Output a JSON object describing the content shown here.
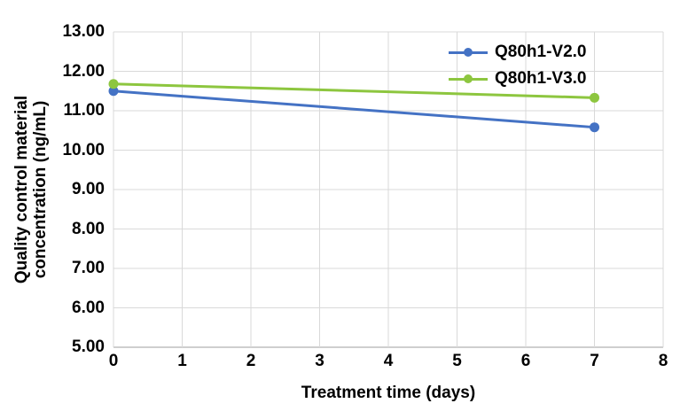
{
  "chart_data": {
    "type": "line",
    "title": "",
    "xlabel": "Treatment time (days)",
    "ylabel": "Quality control material concentration (ng/mL)",
    "ylabel_lines": [
      "Quality control material",
      "concentration (ng/mL)"
    ],
    "x": [
      0,
      7
    ],
    "series": [
      {
        "name": "Q80h1-V2.0",
        "color": "#4472C4",
        "values": [
          11.5,
          10.58
        ]
      },
      {
        "name": "Q80h1-V3.0",
        "color": "#8DC63F",
        "values": [
          11.68,
          11.33
        ]
      }
    ],
    "xlim": [
      0,
      8
    ],
    "ylim": [
      5,
      13
    ],
    "xticks": [
      0,
      1,
      2,
      3,
      4,
      5,
      6,
      7,
      8
    ],
    "yticks": [
      5,
      6,
      7,
      8,
      9,
      10,
      11,
      12,
      13
    ],
    "yticklabels": [
      "5.00",
      "6.00",
      "7.00",
      "8.00",
      "9.00",
      "10.00",
      "11.00",
      "12.00",
      "13.00"
    ],
    "grid": true,
    "legend_position": "top-right",
    "marker": "circle",
    "colors": {
      "gridline": "#D9D9D9",
      "axis_line": "#BFBFBF",
      "text": "#000000",
      "background": "#FFFFFF"
    }
  }
}
